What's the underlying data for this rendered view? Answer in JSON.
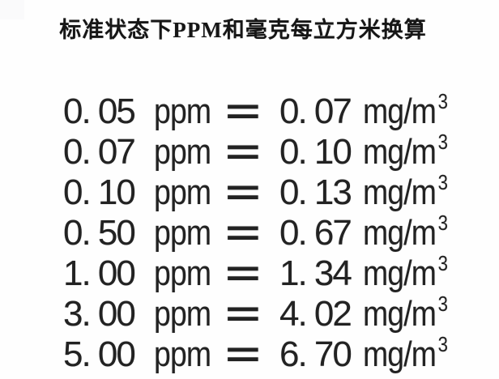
{
  "page": {
    "background_color": "#fefefe",
    "text_color": "#222222"
  },
  "title": "标准状态下PPM和毫克每立方米换算",
  "table": {
    "unit_ppm": "ppm",
    "equals_sign": "=",
    "unit_mg_base": "mg/m",
    "unit_mg_exponent": "3",
    "conversion_factor": 1.34,
    "rows": [
      {
        "ppm_value": "0. 05",
        "mg_value": "0. 07",
        "partially_visible": false
      },
      {
        "ppm_value": "0. 07",
        "mg_value": "0. 10",
        "partially_visible": false
      },
      {
        "ppm_value": "0. 10",
        "mg_value": "0. 13",
        "partially_visible": false
      },
      {
        "ppm_value": "0. 50",
        "mg_value": "0. 67",
        "partially_visible": false
      },
      {
        "ppm_value": "1. 00",
        "mg_value": "1. 34",
        "partially_visible": false
      },
      {
        "ppm_value": "3. 00",
        "mg_value": "4. 02",
        "partially_visible": false
      },
      {
        "ppm_value": "5. 00",
        "mg_value": "6. 70",
        "partially_visible": true
      }
    ]
  }
}
